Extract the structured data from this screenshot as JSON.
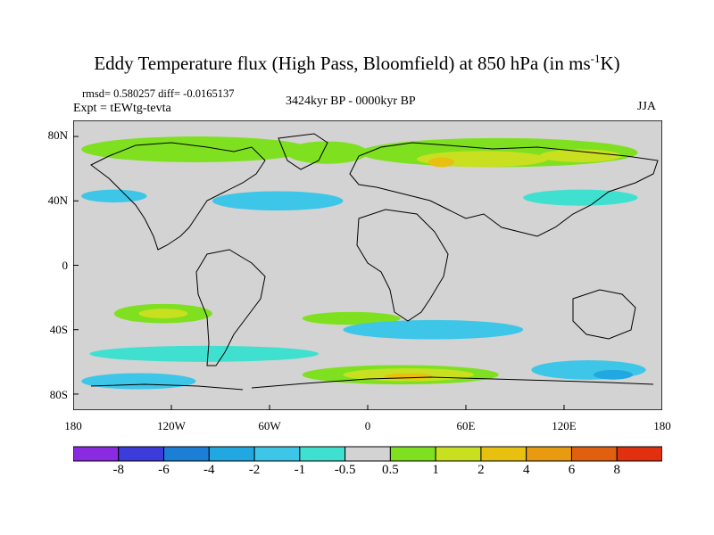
{
  "title": {
    "main": "Eddy Temperature flux (High Pass, Bloomfield) at 850 hPa (in ms",
    "sup": "-1",
    "end": "K)"
  },
  "stats": "rmsd= 0.580257 diff= -0.0165137",
  "experiment": "Expt = tEWtg-tevta",
  "period": "3424kyr BP - 0000kyr BP",
  "season": "JJA",
  "map_data": {
    "projection": "cylindrical equidistant",
    "lon_range": [
      -180,
      180
    ],
    "lat_range": [
      -90,
      90
    ],
    "lat_ticks": [
      "80N",
      "40N",
      "0",
      "40S",
      "80S"
    ],
    "lon_ticks": [
      "180",
      "120W",
      "60W",
      "0",
      "60E",
      "120E",
      "180"
    ],
    "colorbar": {
      "labels": [
        "-8",
        "-6",
        "-4",
        "-2",
        "-1",
        "-0.5",
        "0.5",
        "1",
        "2",
        "4",
        "6",
        "8"
      ],
      "colors": [
        "#8a2be2",
        "#3c3cdc",
        "#1c7fd6",
        "#22a8e0",
        "#3ec6e8",
        "#40e0d0",
        "#d3d3d3",
        "#7fe020",
        "#c8e020",
        "#e8c010",
        "#e89a10",
        "#e06010",
        "#e03010"
      ]
    },
    "background_color": "#d3d3d3",
    "regions": [
      {
        "name": "arctic-north-america-positive",
        "level": "1",
        "color": "#7fe020",
        "lon": -105,
        "lat": 72,
        "rx": 70,
        "ry": 8
      },
      {
        "name": "arctic-north-atlantic-positive",
        "level": "1",
        "color": "#7fe020",
        "lon": -25,
        "lat": 70,
        "rx": 25,
        "ry": 7
      },
      {
        "name": "siberia-positive",
        "level": "1",
        "color": "#7fe020",
        "lon": 80,
        "lat": 70,
        "rx": 85,
        "ry": 9
      },
      {
        "name": "siberia-positive-core",
        "level": "2",
        "color": "#c8e020",
        "lon": 70,
        "lat": 66,
        "rx": 40,
        "ry": 5
      },
      {
        "name": "eastern-siberia-core",
        "level": "2",
        "color": "#c8e020",
        "lon": 130,
        "lat": 68,
        "rx": 25,
        "ry": 4
      },
      {
        "name": "eurasia-max",
        "level": "4",
        "color": "#e8c010",
        "lon": 45,
        "lat": 64,
        "rx": 8,
        "ry": 3
      },
      {
        "name": "north-atlantic-negative",
        "level": "-1",
        "color": "#3ec6e8",
        "lon": -55,
        "lat": 40,
        "rx": 40,
        "ry": 6
      },
      {
        "name": "east-asia-negative",
        "level": "-1",
        "color": "#40e0d0",
        "lon": 130,
        "lat": 42,
        "rx": 35,
        "ry": 5
      },
      {
        "name": "north-pacific-negative",
        "level": "-1",
        "color": "#3ec6e8",
        "lon": -155,
        "lat": 43,
        "rx": 20,
        "ry": 4
      },
      {
        "name": "south-pacific-positive",
        "level": "1",
        "color": "#7fe020",
        "lon": -125,
        "lat": -30,
        "rx": 30,
        "ry": 6
      },
      {
        "name": "south-pacific-core",
        "level": "2",
        "color": "#c8e020",
        "lon": -125,
        "lat": -30,
        "rx": 15,
        "ry": 3
      },
      {
        "name": "south-atlantic-positive",
        "level": "1",
        "color": "#7fe020",
        "lon": -10,
        "lat": -33,
        "rx": 30,
        "ry": 4
      },
      {
        "name": "southern-ocean-negative-1",
        "level": "-1",
        "color": "#3ec6e8",
        "lon": 40,
        "lat": -40,
        "rx": 55,
        "ry": 6
      },
      {
        "name": "southern-ocean-negative-2",
        "level": "-1",
        "color": "#40e0d0",
        "lon": -100,
        "lat": -55,
        "rx": 70,
        "ry": 5
      },
      {
        "name": "antarctic-positive",
        "level": "1",
        "color": "#7fe020",
        "lon": 20,
        "lat": -68,
        "rx": 60,
        "ry": 6
      },
      {
        "name": "antarctic-core",
        "level": "2",
        "color": "#c8e020",
        "lon": 25,
        "lat": -68,
        "rx": 40,
        "ry": 4
      },
      {
        "name": "antarctic-max",
        "level": "4",
        "color": "#e8c010",
        "lon": 25,
        "lat": -69,
        "rx": 15,
        "ry": 2
      },
      {
        "name": "antarctic-negative-west",
        "level": "-1",
        "color": "#3ec6e8",
        "lon": -140,
        "lat": -72,
        "rx": 35,
        "ry": 5
      },
      {
        "name": "antarctic-negative-east",
        "level": "-1",
        "color": "#3ec6e8",
        "lon": 135,
        "lat": -65,
        "rx": 35,
        "ry": 6
      },
      {
        "name": "antarctic-strong-negative",
        "level": "-2",
        "color": "#22a8e0",
        "lon": 150,
        "lat": -68,
        "rx": 12,
        "ry": 3
      }
    ]
  }
}
